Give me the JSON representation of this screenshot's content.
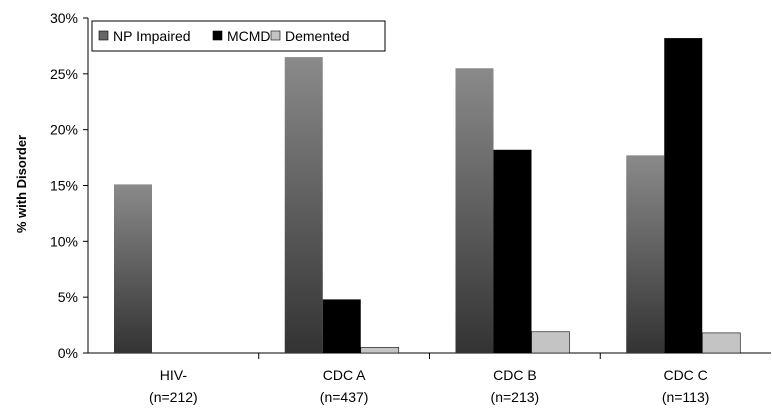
{
  "chart_data": {
    "type": "bar",
    "categories": [
      "HIV-",
      "CDC A",
      "CDC B",
      "CDC C"
    ],
    "category_sublabels": [
      "(n=212)",
      "(n=437)",
      "(n=213)",
      "(n=113)"
    ],
    "series": [
      {
        "name": "NP Impaired",
        "values": [
          15.1,
          26.5,
          25.5,
          17.7
        ],
        "color": "#777777"
      },
      {
        "name": "MCMD",
        "values": [
          0,
          4.8,
          18.2,
          28.2
        ],
        "color": "#000000"
      },
      {
        "name": "Demented",
        "values": [
          0,
          0.5,
          1.9,
          1.8
        ],
        "color": "#c4c4c4"
      }
    ],
    "ylabel": "% with Disorder",
    "ylim": [
      0,
      30
    ],
    "yticks": [
      "0%",
      "5%",
      "10%",
      "15%",
      "20%",
      "25%",
      "30%"
    ],
    "legend_position": "top-left",
    "grid": false
  }
}
